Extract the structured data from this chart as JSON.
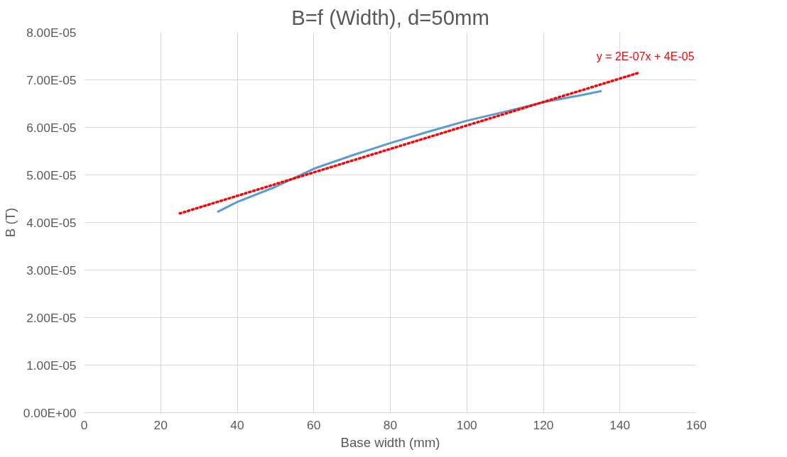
{
  "chart_data": {
    "type": "line",
    "title": "B=f (Width), d=50mm",
    "xlabel": "Base width (mm)",
    "ylabel": "B (T)",
    "series": [
      {
        "color": "#5b9bd5",
        "line_style": "solid",
        "x": [
          35,
          40,
          50,
          60,
          70,
          80,
          90,
          100,
          110,
          120,
          130,
          135
        ],
        "values": [
          4.23e-05,
          4.43e-05,
          4.75e-05,
          5.13e-05,
          5.41e-05,
          5.67e-05,
          5.91e-05,
          6.14e-05,
          6.33e-05,
          6.53e-05,
          6.68e-05,
          6.76e-05
        ]
      },
      {
        "color": "#ff0000",
        "line_style": "dotted",
        "x": [
          25,
          145
        ],
        "values": [
          4.19e-05,
          7.15e-05
        ]
      }
    ],
    "annotations": [
      "y = 2E-07x + 4E-05"
    ],
    "xlim": [
      0,
      160
    ],
    "xticks": [
      0,
      20,
      40,
      60,
      80,
      100,
      120,
      140,
      160
    ],
    "ylim": [
      0,
      8e-05
    ],
    "yticks": [
      {
        "value": 0,
        "label": "0.00E+00"
      },
      {
        "value": 1e-05,
        "label": "1.00E-05"
      },
      {
        "value": 2e-05,
        "label": "2.00E-05"
      },
      {
        "value": 3e-05,
        "label": "3.00E-05"
      },
      {
        "value": 4e-05,
        "label": "4.00E-05"
      },
      {
        "value": 5e-05,
        "label": "5.00E-05"
      },
      {
        "value": 6e-05,
        "label": "6.00E-05"
      },
      {
        "value": 7e-05,
        "label": "7.00E-05"
      },
      {
        "value": 8e-05,
        "label": "8.00E-05"
      }
    ],
    "grid": true
  }
}
